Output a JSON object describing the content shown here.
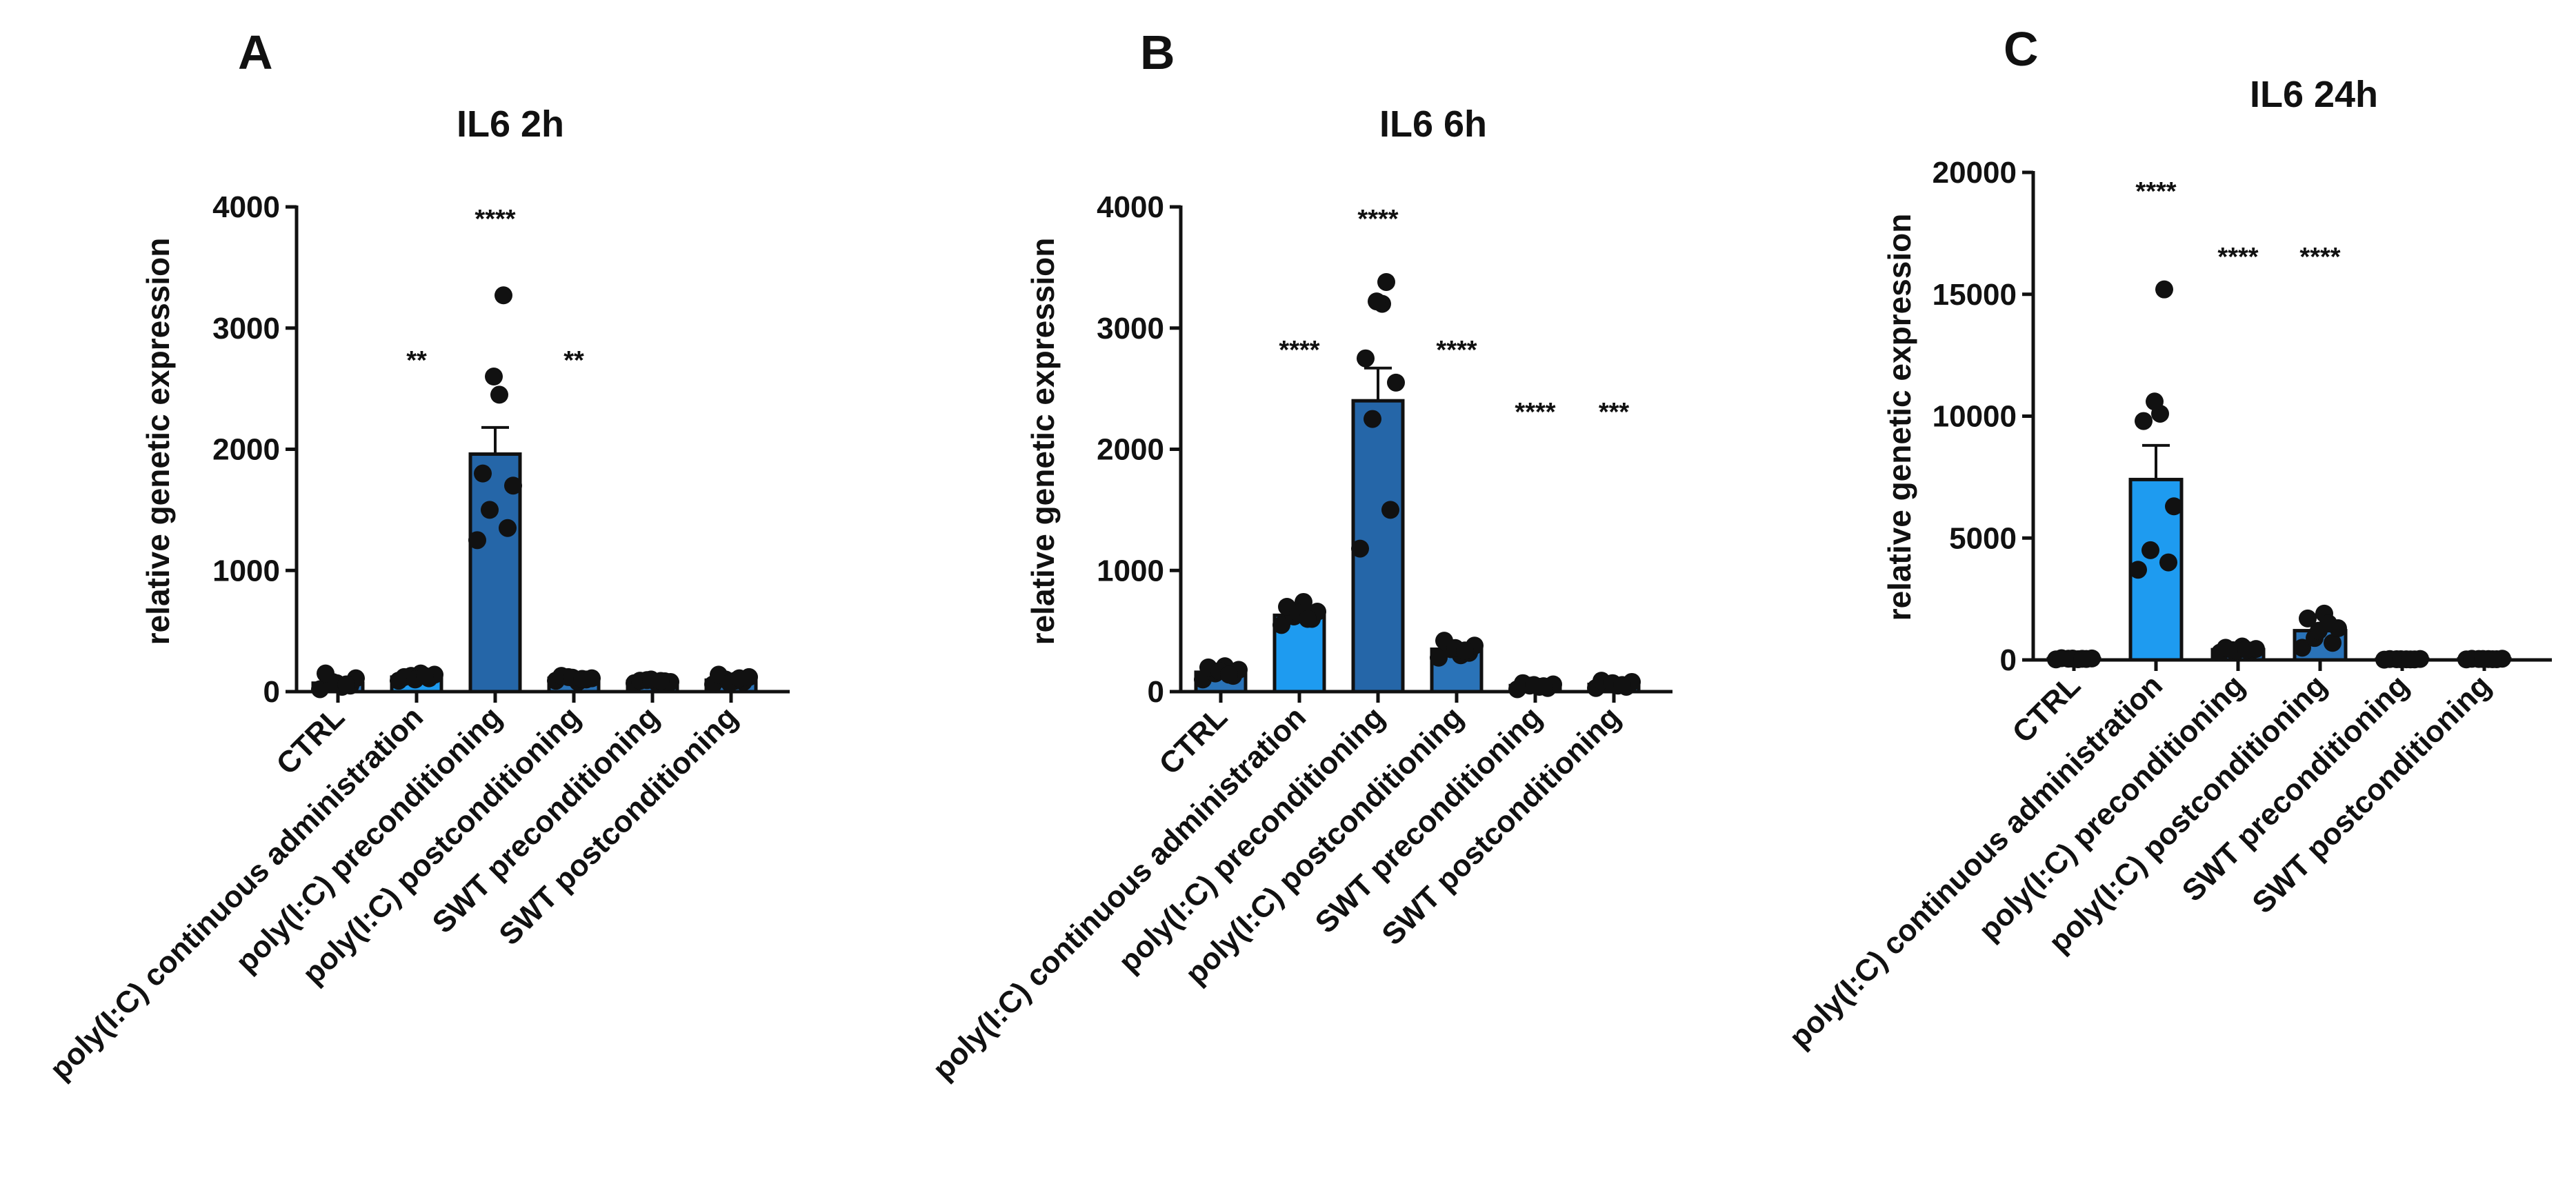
{
  "figure": {
    "panels": [
      "A",
      "B",
      "C"
    ]
  },
  "chart_data": [
    {
      "panel": "A",
      "type": "bar",
      "title": "IL6 2h",
      "ylabel": "relative genetic expression",
      "xlabel": "",
      "ylim": [
        0,
        4000
      ],
      "yticks": [
        0,
        1000,
        2000,
        3000,
        4000
      ],
      "categories": [
        "CTRL",
        "poly(I:C) continuous administration",
        "poly(I:C) preconditioning",
        "poly(I:C) postconditioning",
        "SWT preconditioning",
        "SWT postconditioning"
      ],
      "values": [
        70,
        120,
        1960,
        110,
        85,
        95
      ],
      "errors": [
        20,
        15,
        220,
        15,
        10,
        15
      ],
      "bar_colors": [
        "#2a73b8",
        "#1e9bf0",
        "#2566a8",
        "#2a73b8",
        "#2a73b8",
        "#2a73b8"
      ],
      "points": [
        [
          20,
          50,
          80,
          110,
          150,
          40,
          70,
          60
        ],
        [
          90,
          110,
          130,
          140,
          120,
          150,
          100,
          130
        ],
        [
          1250,
          1350,
          1500,
          1700,
          1800,
          2450,
          2600,
          3270
        ],
        [
          90,
          100,
          120,
          110,
          130,
          80,
          115,
          105
        ],
        [
          70,
          85,
          95,
          80,
          90,
          75,
          100,
          88
        ],
        [
          60,
          80,
          100,
          120,
          140,
          90,
          70,
          110
        ]
      ],
      "significance": [
        "",
        "**",
        "****",
        "**",
        "",
        ""
      ]
    },
    {
      "panel": "B",
      "type": "bar",
      "title": "IL6 6h",
      "ylabel": "relative genetic expression",
      "xlabel": "",
      "ylim": [
        0,
        4000
      ],
      "yticks": [
        0,
        1000,
        2000,
        3000,
        4000
      ],
      "categories": [
        "CTRL",
        "poly(I:C) continuous administration",
        "poly(I:C) preconditioning",
        "poly(I:C) postconditioning",
        "SWT preconditioning",
        "SWT postconditioning"
      ],
      "values": [
        160,
        630,
        2400,
        350,
        50,
        60
      ],
      "errors": [
        25,
        40,
        270,
        40,
        10,
        10
      ],
      "bar_colors": [
        "#2a73b8",
        "#1e9bf0",
        "#2566a8",
        "#2a73b8",
        "#2a73b8",
        "#2a73b8"
      ],
      "points": [
        [
          100,
          130,
          150,
          180,
          200,
          210,
          170,
          140
        ],
        [
          550,
          600,
          620,
          660,
          700,
          740,
          650,
          600
        ],
        [
          1180,
          1500,
          2250,
          2550,
          2750,
          3200,
          3220,
          3380
        ],
        [
          280,
          320,
          350,
          380,
          420,
          300,
          360,
          340
        ],
        [
          20,
          30,
          50,
          60,
          70,
          40,
          55,
          45
        ],
        [
          30,
          40,
          60,
          80,
          90,
          50,
          70,
          55
        ]
      ],
      "significance": [
        "",
        "****",
        "****",
        "****",
        "****",
        "***"
      ]
    },
    {
      "panel": "C",
      "type": "bar",
      "title": "IL6 24h",
      "ylabel": "relative genetic expression",
      "xlabel": "",
      "ylim": [
        0,
        20000
      ],
      "yticks": [
        0,
        5000,
        10000,
        15000,
        20000
      ],
      "categories": [
        "CTRL",
        "poly(I:C) continuous administration",
        "poly(I:C) preconditioning",
        "poly(I:C) postconditioning",
        "SWT preconditioning",
        "SWT postconditioning"
      ],
      "values": [
        50,
        7400,
        420,
        1200,
        30,
        40
      ],
      "errors": [
        10,
        1400,
        60,
        250,
        5,
        5
      ],
      "bar_colors": [
        "#2a73b8",
        "#1e9bf0",
        "#2566a8",
        "#2a73b8",
        "#2a73b8",
        "#2a73b8"
      ],
      "points": [
        [
          20,
          40,
          50,
          60,
          70,
          30,
          55,
          45
        ],
        [
          3700,
          4000,
          4500,
          6300,
          9800,
          10100,
          10600,
          15200
        ],
        [
          300,
          350,
          400,
          450,
          500,
          550,
          380,
          420
        ],
        [
          500,
          700,
          900,
          1300,
          1700,
          1900,
          1200,
          1500
        ],
        [
          10,
          20,
          30,
          40,
          35,
          25,
          30,
          20
        ],
        [
          20,
          30,
          40,
          50,
          45,
          35,
          40,
          30
        ]
      ],
      "significance": [
        "",
        "****",
        "****",
        "****",
        "",
        ""
      ]
    }
  ]
}
